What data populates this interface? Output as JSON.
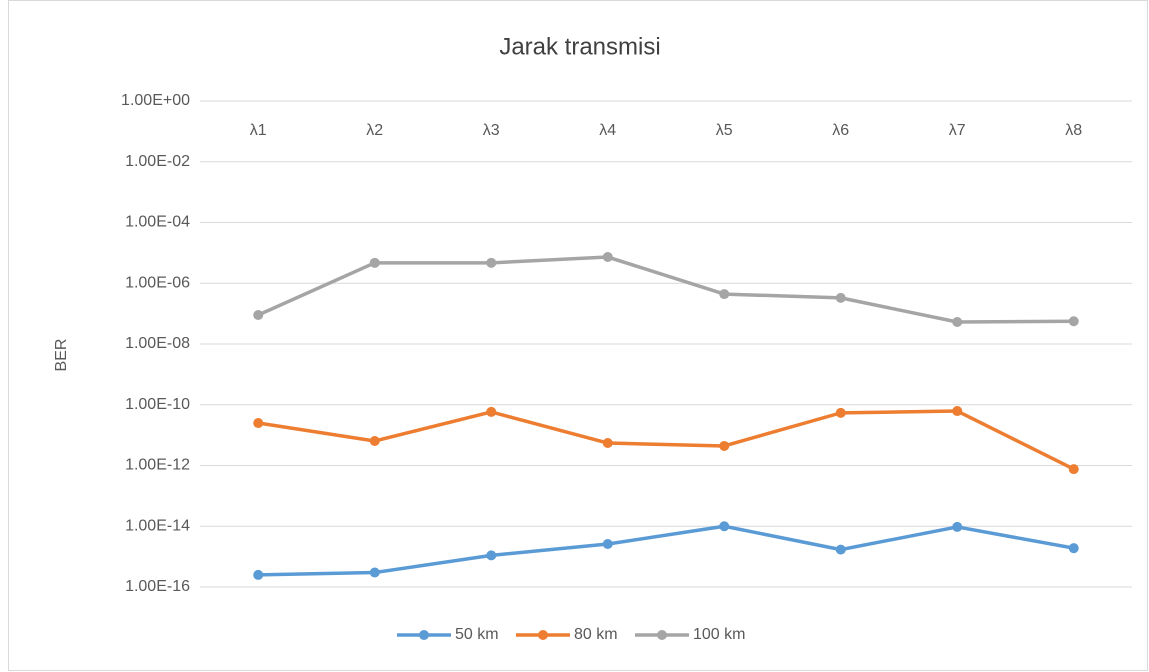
{
  "chart_data": {
    "type": "line",
    "title": "Jarak transmisi",
    "y_label": "BER",
    "log_scale": true,
    "grid": true,
    "legend": "bottom",
    "categories": [
      "λ1",
      "λ2",
      "λ3",
      "λ4",
      "λ5",
      "λ6",
      "λ7",
      "λ8"
    ],
    "ylim": [
      1e-16,
      1
    ],
    "yticks": [
      {
        "value": 1,
        "label": "1.00E+00"
      },
      {
        "value": 0.01,
        "label": "1.00E-02"
      },
      {
        "value": 0.0001,
        "label": "1.00E-04"
      },
      {
        "value": 1e-06,
        "label": "1.00E-06"
      },
      {
        "value": 1e-08,
        "label": "1.00E-08"
      },
      {
        "value": 1e-10,
        "label": "1.00E-10"
      },
      {
        "value": 1e-12,
        "label": "1.00E-12"
      },
      {
        "value": 1e-14,
        "label": "1.00E-14"
      },
      {
        "value": 1e-16,
        "label": "1.00E-16"
      }
    ],
    "series": [
      {
        "name": "50 km",
        "color": "#5b9bd5",
        "values": [
          2.5e-16,
          3e-16,
          1.1e-15,
          2.6e-15,
          1e-14,
          1.7e-15,
          9.5e-15,
          1.9e-15
        ]
      },
      {
        "name": "80 km",
        "color": "#ed7d31",
        "values": [
          2.5e-11,
          6.4e-12,
          5.8e-11,
          5.5e-12,
          4.4e-12,
          5.4e-11,
          6.2e-11,
          7.6e-13
        ]
      },
      {
        "name": "100 km",
        "color": "#a5a5a5",
        "values": [
          9e-08,
          4.7e-06,
          4.7e-06,
          7.3e-06,
          4.4e-07,
          3.3e-07,
          5.3e-08,
          5.6e-08
        ]
      }
    ]
  }
}
